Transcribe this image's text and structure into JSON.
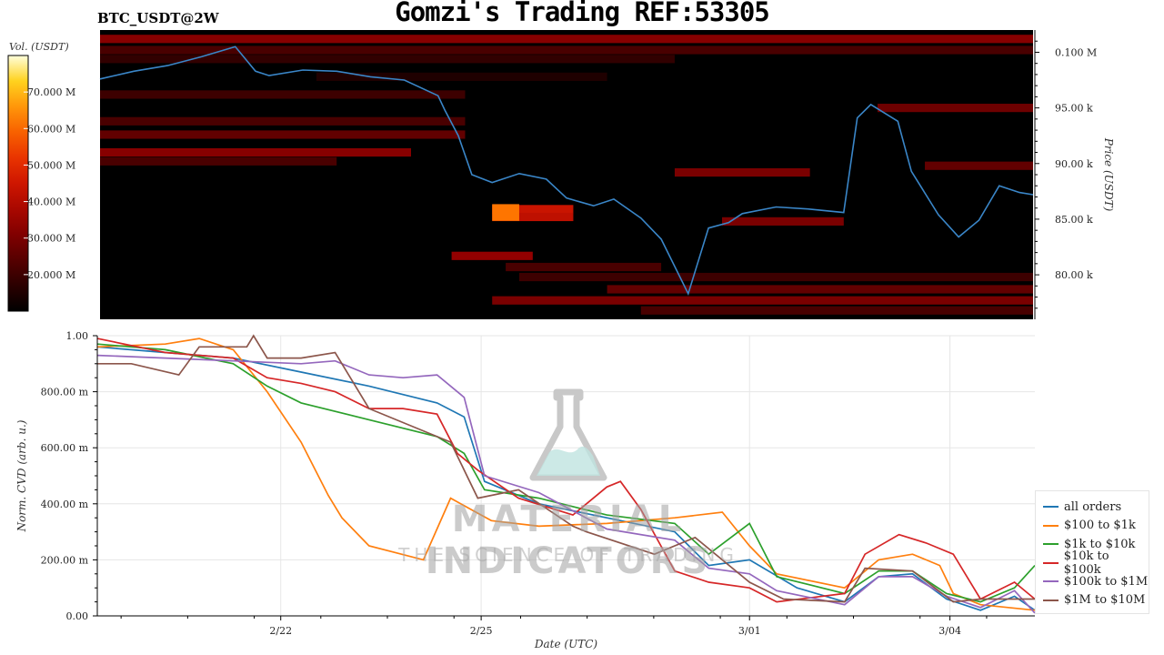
{
  "header": {
    "title": "Gomzi's Trading REF:53305",
    "pair": "BTC_USDT@2W"
  },
  "watermark": {
    "line1": "MATERIAL INDICATORS",
    "line2": "THE SCIENCE OF TRADING"
  },
  "colors": {
    "price_line": "#3a86c8",
    "heatmap_bg": "#000000",
    "grid": "#e6e6e6"
  },
  "chart_data": [
    {
      "type": "heatmap",
      "colorbar_label": "Vol. (USDT)",
      "colorbar_ticks": [
        "20.000 M",
        "30.000 M",
        "40.000 M",
        "50.000 M",
        "60.000 M",
        "70.000 M"
      ],
      "colorbar_tick_values": [
        20,
        30,
        40,
        50,
        60,
        70
      ],
      "colorbar_range": [
        10,
        80
      ],
      "ylabel": "Price (USDT)",
      "y_ticks": [
        "80.00 k",
        "85.00 k",
        "90.00 k",
        "95.00 k",
        "0.100 M"
      ],
      "y_tick_values": [
        80000,
        85000,
        90000,
        95000,
        100000
      ],
      "ylim": [
        76000,
        102000
      ],
      "xlim": [
        0,
        13.8
      ],
      "price_series": {
        "name": "price",
        "x": [
          0,
          0.5,
          1.0,
          1.5,
          2.0,
          2.3,
          2.5,
          3.0,
          3.5,
          4.0,
          4.5,
          5.0,
          5.1,
          5.3,
          5.5,
          5.8,
          6.2,
          6.6,
          6.9,
          7.3,
          7.6,
          8.0,
          8.3,
          8.7,
          9.0,
          9.3,
          9.5,
          10.0,
          10.5,
          11.0,
          11.2,
          11.4,
          11.8,
          12.0,
          12.4,
          12.7,
          13.0,
          13.3,
          13.6,
          13.8
        ],
        "y": [
          97600,
          98300,
          98800,
          99600,
          100500,
          98300,
          97900,
          98400,
          98300,
          97800,
          97500,
          96100,
          94800,
          92500,
          89000,
          88300,
          89100,
          88600,
          86900,
          86200,
          86800,
          85100,
          83200,
          78300,
          84200,
          84700,
          85500,
          86100,
          85900,
          85600,
          94100,
          95300,
          93800,
          89300,
          85400,
          83400,
          84900,
          88000,
          87400,
          87200
        ]
      },
      "volume_bands": [
        {
          "price": 101200,
          "x": [
            0,
            13.8
          ],
          "level": 32
        },
        {
          "price": 100200,
          "x": [
            0,
            13.8
          ],
          "level": 22
        },
        {
          "price": 99400,
          "x": [
            0,
            8.5
          ],
          "level": 18
        },
        {
          "price": 97800,
          "x": [
            3.2,
            7.5
          ],
          "level": 15
        },
        {
          "price": 96200,
          "x": [
            0,
            5.4
          ],
          "level": 20
        },
        {
          "price": 95000,
          "x": [
            11.5,
            13.8
          ],
          "level": 28
        },
        {
          "price": 93800,
          "x": [
            0,
            5.4
          ],
          "level": 22
        },
        {
          "price": 92600,
          "x": [
            0,
            5.4
          ],
          "level": 26
        },
        {
          "price": 91000,
          "x": [
            0,
            4.6
          ],
          "level": 32
        },
        {
          "price": 90200,
          "x": [
            0,
            3.5
          ],
          "level": 22
        },
        {
          "price": 89200,
          "x": [
            8.5,
            10.5
          ],
          "level": 30
        },
        {
          "price": 89800,
          "x": [
            12.2,
            13.8
          ],
          "level": 26
        },
        {
          "price": 85900,
          "x": [
            5.8,
            7.0
          ],
          "level": 44
        },
        {
          "price": 85200,
          "x": [
            5.8,
            7.0
          ],
          "level": 42
        },
        {
          "price": 84800,
          "x": [
            9.2,
            11.0
          ],
          "level": 30
        },
        {
          "price": 81700,
          "x": [
            5.2,
            6.4
          ],
          "level": 34
        },
        {
          "price": 80700,
          "x": [
            6.0,
            8.3
          ],
          "level": 22
        },
        {
          "price": 79800,
          "x": [
            6.2,
            13.8
          ],
          "level": 20
        },
        {
          "price": 78700,
          "x": [
            7.5,
            13.8
          ],
          "level": 26
        },
        {
          "price": 77700,
          "x": [
            5.8,
            13.8
          ],
          "level": 30
        },
        {
          "price": 76800,
          "x": [
            8.0,
            13.8
          ],
          "level": 22
        }
      ],
      "hot_spots": [
        {
          "price": 85600,
          "x": [
            5.8,
            6.2
          ],
          "level": 62
        }
      ]
    },
    {
      "type": "line",
      "xlabel": "Date (UTC)",
      "ylabel": "Norm. CVD (arb. u.)",
      "x_ticks": [
        "2/22",
        "2/25",
        "3/01",
        "3/04"
      ],
      "x_tick_values": [
        2.7,
        5.65,
        9.6,
        12.55
      ],
      "xlim": [
        0,
        13.8
      ],
      "y_ticks": [
        "0.00",
        "200.00 m",
        "400.00 m",
        "600.00 m",
        "800.00 m",
        "1.00"
      ],
      "y_tick_values": [
        0,
        0.2,
        0.4,
        0.6,
        0.8,
        1.0
      ],
      "ylim": [
        0,
        1.0
      ],
      "legend_position": "bottom-right",
      "series": [
        {
          "name": "all orders",
          "color": "#1f77b4",
          "x": [
            0,
            1,
            2,
            3,
            4,
            5,
            5.4,
            5.7,
            6.5,
            7.5,
            8.5,
            9.0,
            9.6,
            10.3,
            11.0,
            11.5,
            12.0,
            12.5,
            13.0,
            13.5,
            13.8
          ],
          "y": [
            0.96,
            0.94,
            0.92,
            0.87,
            0.82,
            0.76,
            0.71,
            0.48,
            0.4,
            0.35,
            0.3,
            0.18,
            0.2,
            0.1,
            0.05,
            0.14,
            0.15,
            0.06,
            0.02,
            0.07,
            0.02
          ]
        },
        {
          "name": "$100 to $1k",
          "color": "#ff7f0e",
          "x": [
            0,
            1,
            1.5,
            2,
            2.5,
            3,
            3.4,
            3.6,
            4.0,
            4.8,
            5.2,
            5.5,
            5.8,
            6.5,
            7.5,
            8.5,
            9.2,
            9.6,
            10.0,
            11.0,
            11.5,
            12.0,
            12.4,
            12.6,
            13.0,
            13.8
          ],
          "y": [
            0.96,
            0.97,
            0.99,
            0.95,
            0.8,
            0.62,
            0.43,
            0.35,
            0.25,
            0.2,
            0.42,
            0.38,
            0.34,
            0.32,
            0.33,
            0.35,
            0.37,
            0.25,
            0.15,
            0.1,
            0.2,
            0.22,
            0.18,
            0.08,
            0.04,
            0.02
          ]
        },
        {
          "name": "$1k to $10k",
          "color": "#2ca02c",
          "x": [
            0,
            1,
            2,
            2.5,
            3,
            4,
            5,
            5.4,
            5.7,
            6.5,
            7.5,
            8.5,
            9.0,
            9.6,
            10.0,
            11.0,
            11.5,
            12.0,
            12.5,
            13.0,
            13.5,
            13.8
          ],
          "y": [
            0.97,
            0.95,
            0.9,
            0.82,
            0.76,
            0.7,
            0.64,
            0.58,
            0.45,
            0.42,
            0.36,
            0.33,
            0.22,
            0.33,
            0.14,
            0.08,
            0.16,
            0.16,
            0.08,
            0.05,
            0.1,
            0.18
          ]
        },
        {
          "name": "$10k to $100k",
          "color": "#d62728",
          "x": [
            0,
            1,
            2,
            2.5,
            3,
            3.5,
            4,
            4.5,
            5,
            5.3,
            5.6,
            6.2,
            7.0,
            7.5,
            7.7,
            8.0,
            8.5,
            9.0,
            9.6,
            10.0,
            11.0,
            11.3,
            11.8,
            12.2,
            12.6,
            13.0,
            13.5,
            13.8
          ],
          "y": [
            0.99,
            0.94,
            0.92,
            0.85,
            0.83,
            0.8,
            0.74,
            0.74,
            0.72,
            0.58,
            0.52,
            0.42,
            0.36,
            0.46,
            0.48,
            0.38,
            0.16,
            0.12,
            0.1,
            0.05,
            0.08,
            0.22,
            0.29,
            0.26,
            0.22,
            0.06,
            0.12,
            0.06
          ]
        },
        {
          "name": "$100k to $1M",
          "color": "#9467bd",
          "x": [
            0,
            1,
            2,
            3,
            3.5,
            4,
            4.5,
            5,
            5.4,
            5.7,
            6.5,
            7.5,
            8.5,
            9.0,
            9.6,
            10.0,
            11.0,
            11.5,
            12.0,
            12.5,
            13.0,
            13.5,
            13.8
          ],
          "y": [
            0.93,
            0.92,
            0.91,
            0.9,
            0.91,
            0.86,
            0.85,
            0.86,
            0.78,
            0.5,
            0.44,
            0.31,
            0.27,
            0.17,
            0.15,
            0.09,
            0.04,
            0.14,
            0.14,
            0.07,
            0.03,
            0.09,
            0.01
          ]
        },
        {
          "name": "$1M to $10M",
          "color": "#8c564b",
          "x": [
            0,
            0.5,
            1.2,
            1.5,
            2.2,
            2.3,
            2.5,
            3.0,
            3.5,
            4.0,
            5.2,
            5.6,
            6.2,
            7.0,
            7.2,
            8.2,
            8.8,
            9.6,
            10.1,
            11.0,
            11.3,
            12.0,
            12.6,
            13.0,
            13.8
          ],
          "y": [
            0.9,
            0.9,
            0.86,
            0.96,
            0.96,
            1.0,
            0.92,
            0.92,
            0.94,
            0.74,
            0.62,
            0.42,
            0.45,
            0.32,
            0.3,
            0.22,
            0.28,
            0.12,
            0.06,
            0.05,
            0.17,
            0.16,
            0.05,
            0.06,
            0.06
          ]
        }
      ]
    }
  ]
}
